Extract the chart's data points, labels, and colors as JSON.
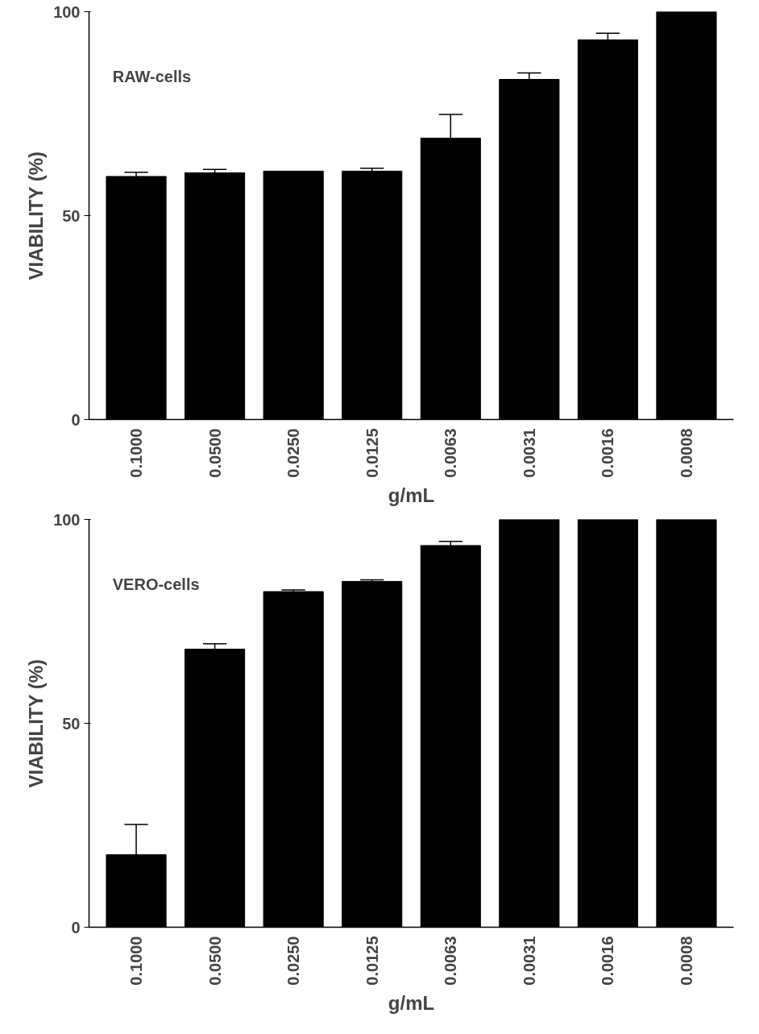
{
  "chart_data": [
    {
      "type": "bar",
      "annotations": [
        "RAW-cells"
      ],
      "xlabel": "g/mL",
      "ylabel": "VIABILITY (%)",
      "categories": [
        "0.1000",
        "0.0500",
        "0.0250",
        "0.0125",
        "0.0063",
        "0.0031",
        "0.0016",
        "0.0008"
      ],
      "values": [
        59.6,
        60.5,
        60.9,
        60.9,
        69.0,
        83.4,
        93.1,
        100
      ],
      "errors": [
        [
          59.6,
          60.6
        ],
        [
          60.5,
          61.3
        ],
        null,
        [
          60.9,
          61.6
        ],
        [
          69.0,
          74.8
        ],
        [
          83.4,
          85.0
        ],
        [
          93.1,
          94.7
        ],
        null
      ],
      "color": "#000000",
      "ylim": [
        0,
        100
      ],
      "yticks": [
        0,
        50,
        100
      ],
      "grid": false
    },
    {
      "type": "bar",
      "annotations": [
        "VERO-cells"
      ],
      "xlabel": "g/mL",
      "ylabel": "VIABILITY (%)",
      "categories": [
        "0.1000",
        "0.0500",
        "0.0250",
        "0.0125",
        "0.0063",
        "0.0031",
        "0.0016",
        "0.0008"
      ],
      "values": [
        17.8,
        68.2,
        82.3,
        84.8,
        93.6,
        100,
        100,
        100
      ],
      "errors": [
        [
          17.8,
          25.2
        ],
        [
          68.2,
          69.5
        ],
        [
          82.3,
          82.7
        ],
        [
          84.8,
          85.2
        ],
        [
          93.6,
          94.6
        ],
        null,
        null,
        null
      ],
      "color": "#000000",
      "ylim": [
        0,
        100
      ],
      "yticks": [
        0,
        50,
        100
      ],
      "grid": false
    }
  ]
}
